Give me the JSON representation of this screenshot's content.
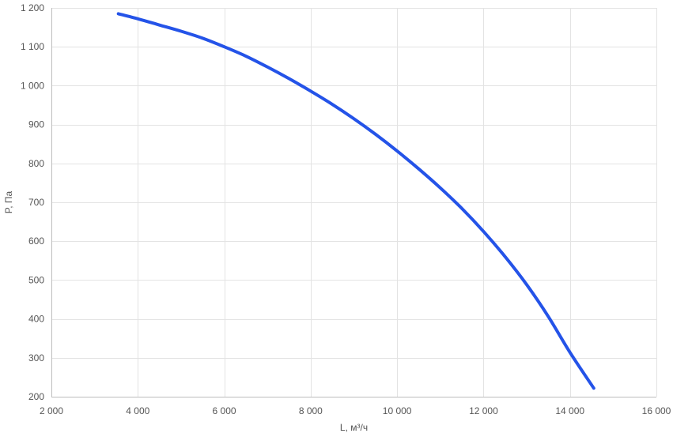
{
  "chart_data": {
    "type": "line",
    "xlabel": "L, м³/ч",
    "ylabel": "P, Па",
    "xlim": [
      2000,
      16000
    ],
    "ylim": [
      200,
      1200
    ],
    "x_ticks": [
      2000,
      4000,
      6000,
      8000,
      10000,
      12000,
      14000,
      16000
    ],
    "y_ticks": [
      200,
      300,
      400,
      500,
      600,
      700,
      800,
      900,
      1000,
      1100,
      1200
    ],
    "x_tick_labels": [
      "2 000",
      "4 000",
      "6 000",
      "8 000",
      "10 000",
      "12 000",
      "14 000",
      "16 000"
    ],
    "y_tick_labels": [
      "200",
      "300",
      "400",
      "500",
      "600",
      "700",
      "800",
      "900",
      "1 000",
      "1 100",
      "1 200"
    ],
    "grid": true,
    "series": [
      {
        "color": "#2453e8",
        "points": [
          [
            3550,
            1185
          ],
          [
            4000,
            1172
          ],
          [
            4500,
            1156
          ],
          [
            5000,
            1140
          ],
          [
            5500,
            1122
          ],
          [
            6000,
            1100
          ],
          [
            6500,
            1076
          ],
          [
            7000,
            1048
          ],
          [
            7500,
            1018
          ],
          [
            8000,
            986
          ],
          [
            8500,
            952
          ],
          [
            9000,
            915
          ],
          [
            9500,
            875
          ],
          [
            10000,
            832
          ],
          [
            10500,
            786
          ],
          [
            11000,
            737
          ],
          [
            11500,
            684
          ],
          [
            12000,
            625
          ],
          [
            12500,
            560
          ],
          [
            13000,
            488
          ],
          [
            13500,
            406
          ],
          [
            14000,
            314
          ],
          [
            14550,
            222
          ]
        ]
      }
    ]
  }
}
